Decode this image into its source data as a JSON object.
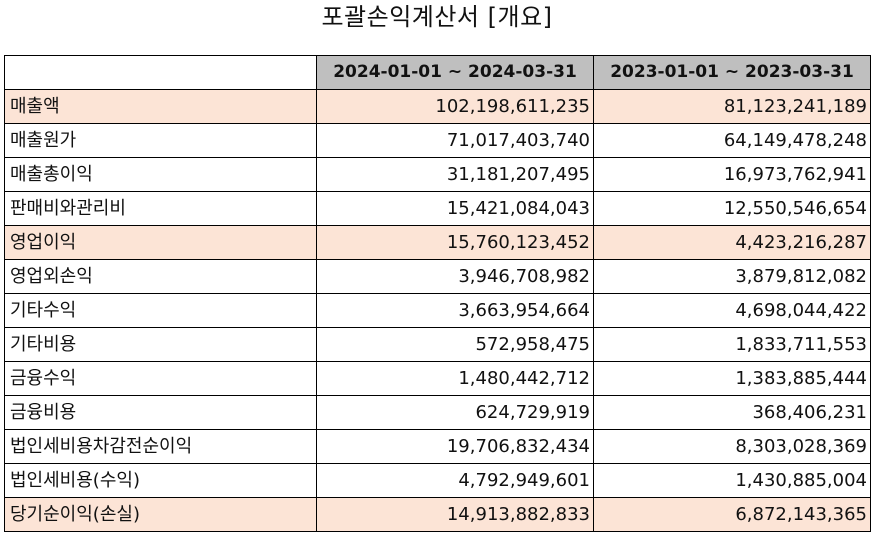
{
  "title": "포괄손익계산서 [개요]",
  "columns": [
    "",
    "2024-01-01 ~ 2024-03-31",
    "2023-01-01 ~ 2023-03-31"
  ],
  "rows": [
    {
      "label": "매출액",
      "current": "102,198,611,235",
      "previous": "81,123,241,189",
      "highlight": true
    },
    {
      "label": "매출원가",
      "current": "71,017,403,740",
      "previous": "64,149,478,248",
      "highlight": false
    },
    {
      "label": "매출총이익",
      "current": "31,181,207,495",
      "previous": "16,973,762,941",
      "highlight": false
    },
    {
      "label": "판매비와관리비",
      "current": "15,421,084,043",
      "previous": "12,550,546,654",
      "highlight": false
    },
    {
      "label": "영업이익",
      "current": "15,760,123,452",
      "previous": "4,423,216,287",
      "highlight": true
    },
    {
      "label": "영업외손익",
      "current": "3,946,708,982",
      "previous": "3,879,812,082",
      "highlight": false
    },
    {
      "label": "기타수익",
      "current": "3,663,954,664",
      "previous": "4,698,044,422",
      "highlight": false
    },
    {
      "label": "기타비용",
      "current": "572,958,475",
      "previous": "1,833,711,553",
      "highlight": false
    },
    {
      "label": "금융수익",
      "current": "1,480,442,712",
      "previous": "1,383,885,444",
      "highlight": false
    },
    {
      "label": "금융비용",
      "current": "624,729,919",
      "previous": "368,406,231",
      "highlight": false
    },
    {
      "label": "법인세비용차감전순이익",
      "current": "19,706,832,434",
      "previous": "8,303,028,369",
      "highlight": false
    },
    {
      "label": "법인세비용(수익)",
      "current": "4,792,949,601",
      "previous": "1,430,885,004",
      "highlight": false
    },
    {
      "label": "당기순이익(손실)",
      "current": "14,913,882,833",
      "previous": "6,872,143,365",
      "highlight": true
    }
  ],
  "colors": {
    "header_bg": "#bfbfbf",
    "highlight_bg": "#fce4d6",
    "border": "#000000"
  }
}
